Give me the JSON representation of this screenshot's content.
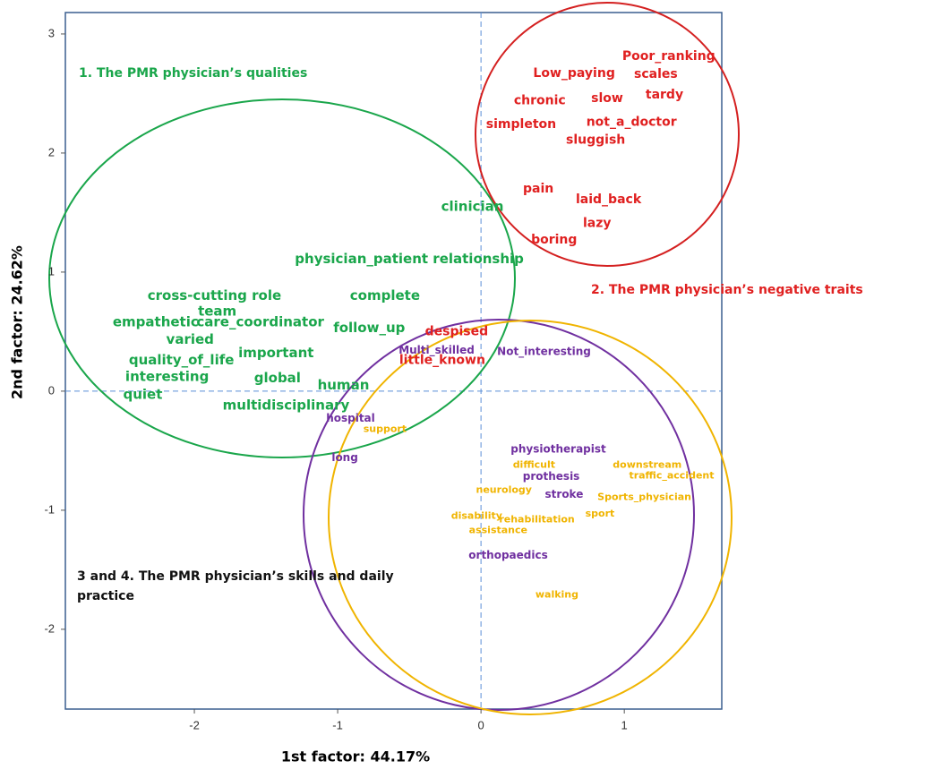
{
  "chart_data": {
    "type": "scatter",
    "xlabel": "1st factor: 44.17%",
    "ylabel": "2nd factor: 24.62%",
    "xlim": [
      -2.9,
      1.68
    ],
    "ylim": [
      -2.67,
      3.18
    ],
    "xticks": [
      -2,
      -1,
      0,
      1
    ],
    "yticks": [
      -2,
      -1,
      0,
      1,
      2,
      3
    ],
    "annotations": [
      "1. The PMR physician’s qualities",
      "2. The PMR physician’s negative traits",
      "3 and 4. The PMR physician’s skills and daily practice"
    ],
    "series": [
      {
        "color": "#1aa64b",
        "labels": [
          "clinician",
          "physician_patient relationship",
          "cross-cutting role",
          "complete",
          "team",
          "empathetic",
          "care_coordinator",
          "follow_up",
          "varied",
          "important",
          "quality_of_life",
          "interesting",
          "global",
          "human",
          "quiet",
          "multidisciplinary"
        ],
        "x": [
          -0.06,
          -0.5,
          -1.86,
          -0.67,
          -1.84,
          -2.27,
          -1.54,
          -0.78,
          -2.03,
          -1.43,
          -2.09,
          -2.19,
          -1.42,
          -0.96,
          -2.36,
          -1.36
        ],
        "y": [
          1.55,
          1.11,
          0.8,
          0.8,
          0.67,
          0.58,
          0.58,
          0.53,
          0.43,
          0.32,
          0.26,
          0.12,
          0.11,
          0.05,
          -0.03,
          -0.12
        ]
      },
      {
        "color": "#e02020",
        "labels": [
          "Poor_ranking",
          "Low_paying",
          "scales",
          "slow",
          "tardy",
          "chronic",
          "simpleton",
          "not_a_doctor",
          "sluggish",
          "pain",
          "laid_back",
          "lazy",
          "boring",
          "despised",
          "little_known"
        ],
        "x": [
          1.31,
          0.65,
          1.22,
          0.88,
          1.28,
          0.41,
          0.28,
          1.05,
          0.8,
          0.4,
          0.89,
          0.81,
          0.51,
          -0.17,
          -0.27
        ],
        "y": [
          2.81,
          2.67,
          2.66,
          2.46,
          2.49,
          2.44,
          2.24,
          2.26,
          2.11,
          1.7,
          1.61,
          1.41,
          1.27,
          0.5,
          0.26
        ]
      },
      {
        "color": "#7030a0",
        "labels": [
          "Multi_skilled",
          "Not_interesting",
          "hospital",
          "long",
          "physiotherapist",
          "prothesis",
          "stroke",
          "orthopaedics"
        ],
        "x": [
          -0.31,
          0.44,
          -0.91,
          -0.95,
          0.54,
          0.49,
          0.58,
          0.19
        ],
        "y": [
          0.34,
          0.33,
          -0.23,
          -0.56,
          -0.49,
          -0.72,
          -0.87,
          -1.38
        ]
      },
      {
        "color": "#f0b400",
        "labels": [
          "support",
          "difficult",
          "downstream",
          "traffic_accident",
          "neurology",
          "Sports_physician",
          "sport",
          "disability",
          "rehabilitation",
          "assistance",
          "walking"
        ],
        "x": [
          -0.67,
          0.37,
          1.16,
          1.33,
          0.16,
          1.14,
          0.83,
          -0.03,
          0.39,
          0.12,
          0.53
        ],
        "y": [
          -0.32,
          -0.62,
          -0.62,
          -0.71,
          -0.83,
          -0.89,
          -1.03,
          -1.05,
          -1.08,
          -1.17,
          -1.71
        ]
      }
    ]
  }
}
